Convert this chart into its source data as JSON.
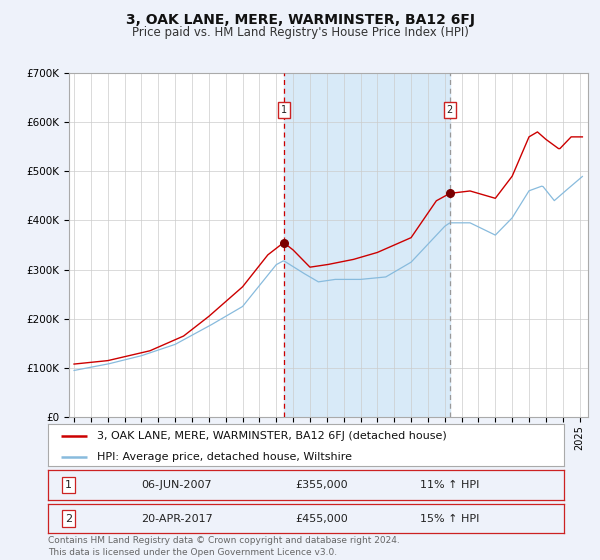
{
  "title": "3, OAK LANE, MERE, WARMINSTER, BA12 6FJ",
  "subtitle": "Price paid vs. HM Land Registry's House Price Index (HPI)",
  "ylim": [
    0,
    700000
  ],
  "yticks": [
    0,
    100000,
    200000,
    300000,
    400000,
    500000,
    600000,
    700000
  ],
  "ytick_labels": [
    "£0",
    "£100K",
    "£200K",
    "£300K",
    "£400K",
    "£500K",
    "£600K",
    "£700K"
  ],
  "xlim_start": 1994.7,
  "xlim_end": 2025.5,
  "red_line_label": "3, OAK LANE, MERE, WARMINSTER, BA12 6FJ (detached house)",
  "blue_line_label": "HPI: Average price, detached house, Wiltshire",
  "event1_date": "06-JUN-2007",
  "event1_price": "355,000",
  "event1_hpi": "11%",
  "event2_date": "20-APR-2017",
  "event2_price": "455,000",
  "event2_hpi": "15%",
  "event1_x": 2007.44,
  "event2_x": 2017.3,
  "event1_y": 355000,
  "event2_y": 455000,
  "footnote1": "Contains HM Land Registry data © Crown copyright and database right 2024.",
  "footnote2": "This data is licensed under the Open Government Licence v3.0.",
  "bg_color": "#eef2fa",
  "plot_bg": "#ffffff",
  "grid_color": "#cccccc",
  "red_color": "#cc0000",
  "blue_color": "#88bbdd",
  "shade_color": "#d8eaf8",
  "title_fontsize": 10,
  "subtitle_fontsize": 8.5,
  "tick_fontsize": 7.5,
  "legend_fontsize": 8,
  "table_fontsize": 8,
  "footnote_fontsize": 6.5
}
